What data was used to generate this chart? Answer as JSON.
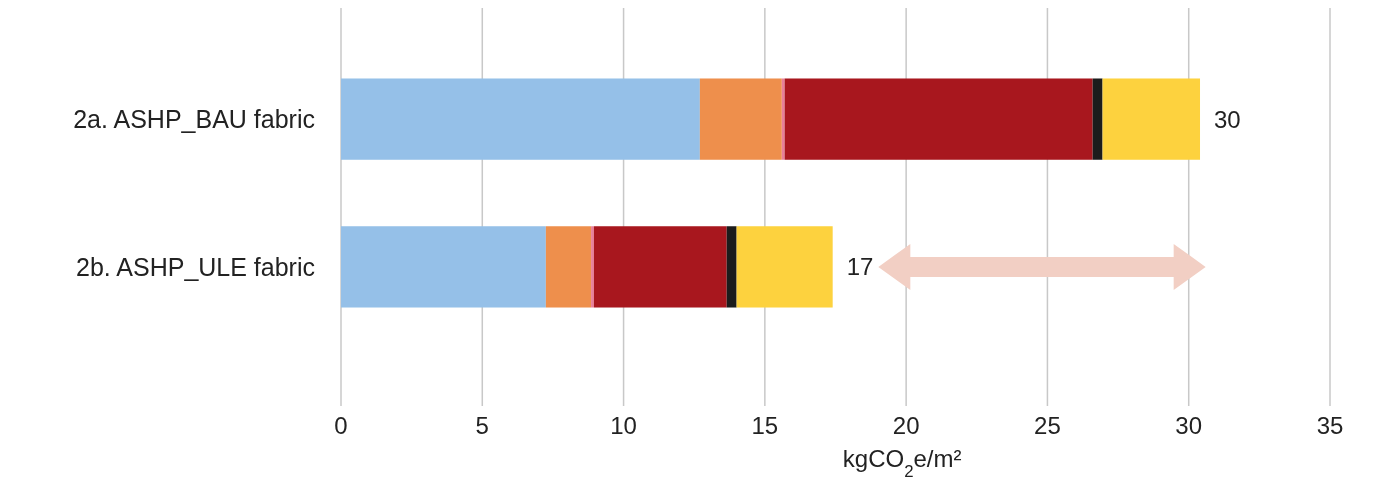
{
  "chart_data": {
    "type": "bar",
    "orientation": "horizontal",
    "stacked": true,
    "categories": [
      "2a. ASHP_BAU fabric",
      "2b. ASHP_ULE fabric"
    ],
    "series": [
      {
        "color": "#95c0e8",
        "values": [
          12.7,
          7.25
        ]
      },
      {
        "color": "#ee8f4c",
        "values": [
          2.9,
          1.6
        ]
      },
      {
        "color": "#e87f9a",
        "values": [
          0.1,
          0.1
        ]
      },
      {
        "color": "#a8171e",
        "values": [
          10.9,
          4.7
        ]
      },
      {
        "color": "#1c1c1c",
        "values": [
          0.35,
          0.35
        ]
      },
      {
        "color": "#fdd23e",
        "values": [
          3.45,
          3.4
        ]
      }
    ],
    "totals": [
      "30",
      "17"
    ],
    "xlim": [
      0,
      35
    ],
    "xticks": [
      0,
      5,
      10,
      15,
      20,
      25,
      30,
      35
    ],
    "grid": "x",
    "xlabel": "kgCO$_{2}$e/m²"
  }
}
